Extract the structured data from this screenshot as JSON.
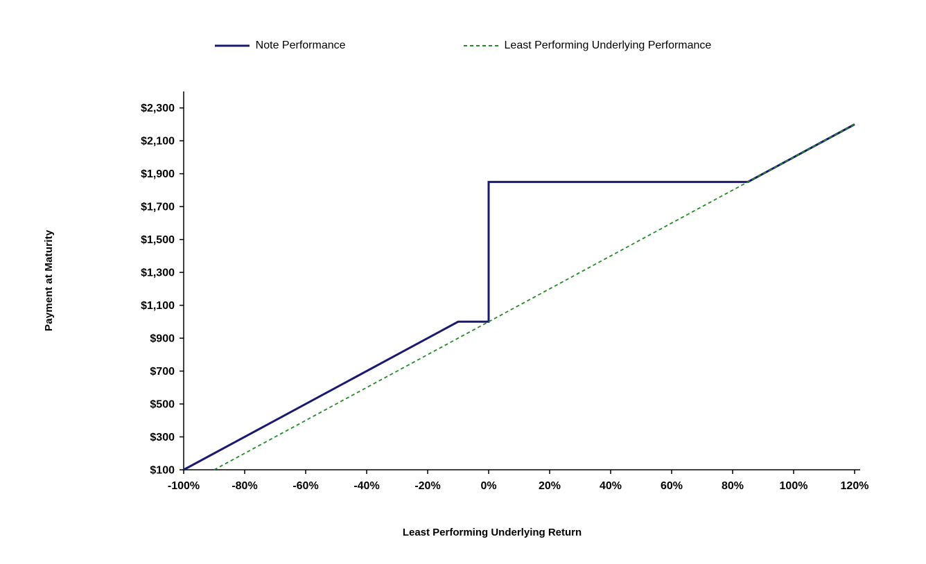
{
  "page": {
    "background_color": "#FFFFFF"
  },
  "chart_data": {
    "type": "line",
    "xlabel": "Least Performing Underlying Return",
    "ylabel": "Payment at Maturity",
    "xlim": [
      -100,
      120
    ],
    "ylim": [
      100,
      2400
    ],
    "grid": false,
    "legend_position": "top-center",
    "axis_color": "#000000",
    "x_ticks": {
      "values": [
        -100,
        -80,
        -60,
        -40,
        -20,
        0,
        20,
        40,
        60,
        80,
        100,
        120
      ],
      "labels": [
        "-100%",
        "-80%",
        "-60%",
        "-40%",
        "-20%",
        "0%",
        "20%",
        "40%",
        "60%",
        "80%",
        "100%",
        "120%"
      ]
    },
    "y_ticks": {
      "values": [
        100,
        300,
        500,
        700,
        900,
        1100,
        1300,
        1500,
        1700,
        1900,
        2100,
        2300
      ],
      "labels": [
        "$100",
        "$300",
        "$500",
        "$700",
        "$900",
        "$1,100",
        "$1,300",
        "$1,500",
        "$1,700",
        "$1,900",
        "$2,100",
        "$2,300"
      ]
    },
    "series": [
      {
        "name": "Note Performance",
        "color": "#191970",
        "line_style": "solid",
        "line_width": 3,
        "points": [
          [
            -100,
            100
          ],
          [
            -10,
            1000
          ],
          [
            0,
            1000
          ],
          [
            0,
            1850
          ],
          [
            85,
            1850
          ],
          [
            120,
            2200
          ]
        ]
      },
      {
        "name": "Least Performing Underlying Performance",
        "color": "#228B22",
        "line_style": "dashed",
        "line_width": 1.8,
        "points": [
          [
            -90,
            100
          ],
          [
            120,
            2200
          ]
        ]
      }
    ]
  }
}
